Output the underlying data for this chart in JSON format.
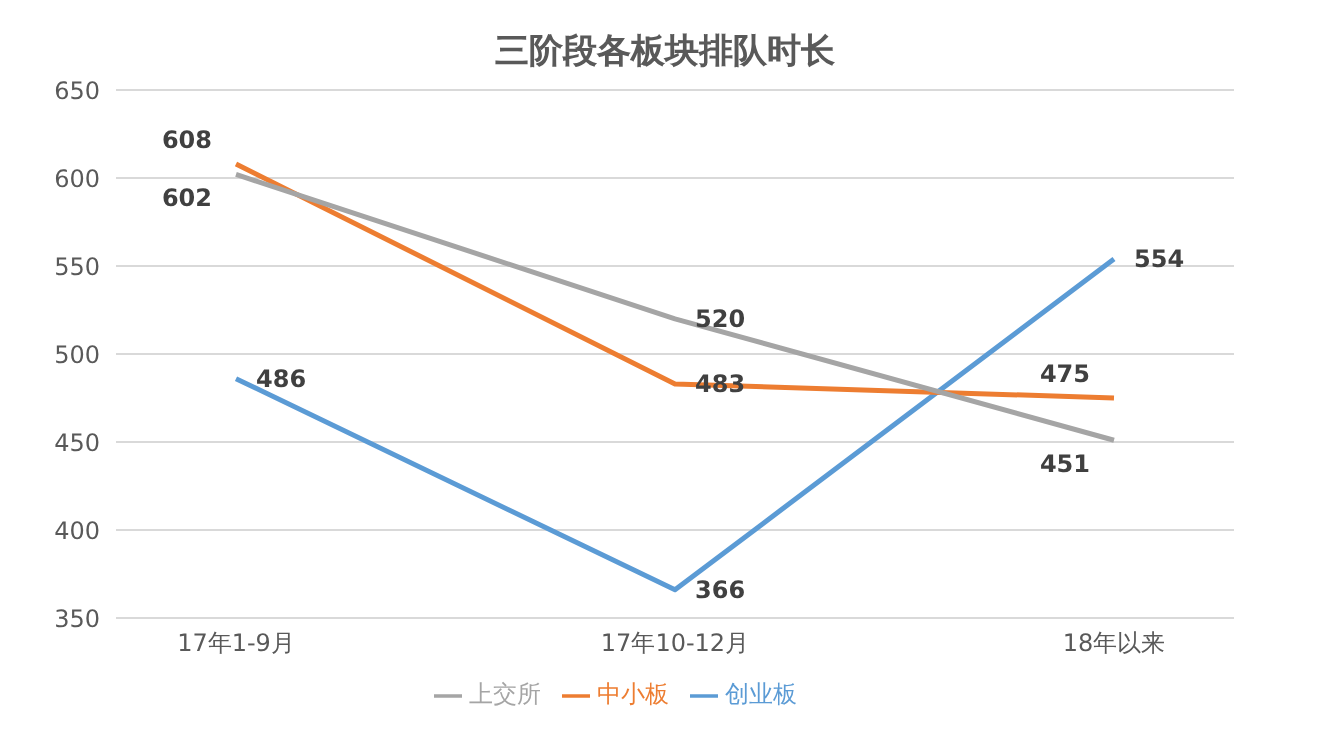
{
  "chart_data": {
    "type": "line",
    "title": "三阶段各板块排队时长",
    "categories": [
      "17年1-9月",
      "17年10-12月",
      "18年以来"
    ],
    "series": [
      {
        "name": "创业板",
        "color": "#5b9bd5",
        "values": [
          486,
          366,
          554
        ]
      },
      {
        "name": "中小板",
        "color": "#ed7d31",
        "values": [
          608,
          483,
          475
        ]
      },
      {
        "name": "上交所",
        "color": "#a5a5a5",
        "values": [
          602,
          520,
          451
        ]
      }
    ],
    "ylim": [
      350,
      650
    ],
    "yticks": [
      350,
      400,
      450,
      500,
      550,
      600,
      650
    ],
    "grid": "y",
    "legend": "bottom",
    "data_labels": true,
    "marker": "none",
    "line_style": "solid"
  }
}
